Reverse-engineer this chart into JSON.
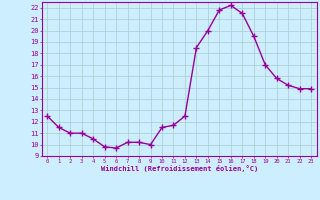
{
  "x": [
    0,
    1,
    2,
    3,
    4,
    5,
    6,
    7,
    8,
    9,
    10,
    11,
    12,
    13,
    14,
    15,
    16,
    17,
    18,
    19,
    20,
    21,
    22,
    23
  ],
  "y": [
    12.5,
    11.5,
    11.0,
    11.0,
    10.5,
    9.8,
    9.7,
    10.2,
    10.2,
    10.0,
    11.5,
    11.7,
    12.5,
    18.5,
    20.0,
    21.8,
    22.2,
    21.5,
    19.5,
    17.0,
    15.8,
    15.2,
    14.9,
    14.9
  ],
  "line_color": "#990099",
  "marker": "+",
  "marker_size": 4,
  "marker_lw": 1.0,
  "bg_color": "#cceeff",
  "grid_color": "#aacccc",
  "ylabel_ticks": [
    9,
    10,
    11,
    12,
    13,
    14,
    15,
    16,
    17,
    18,
    19,
    20,
    21,
    22
  ],
  "xlabel_ticks": [
    0,
    1,
    2,
    3,
    4,
    5,
    6,
    7,
    8,
    9,
    10,
    11,
    12,
    13,
    14,
    15,
    16,
    17,
    18,
    19,
    20,
    21,
    22,
    23
  ],
  "xlabel": "Windchill (Refroidissement éolien,°C)",
  "ylim": [
    9,
    22.5
  ],
  "xlim": [
    -0.5,
    23.5
  ],
  "tick_color": "#990099",
  "label_color": "#990099",
  "spine_color": "#990099",
  "line_width": 1.0
}
